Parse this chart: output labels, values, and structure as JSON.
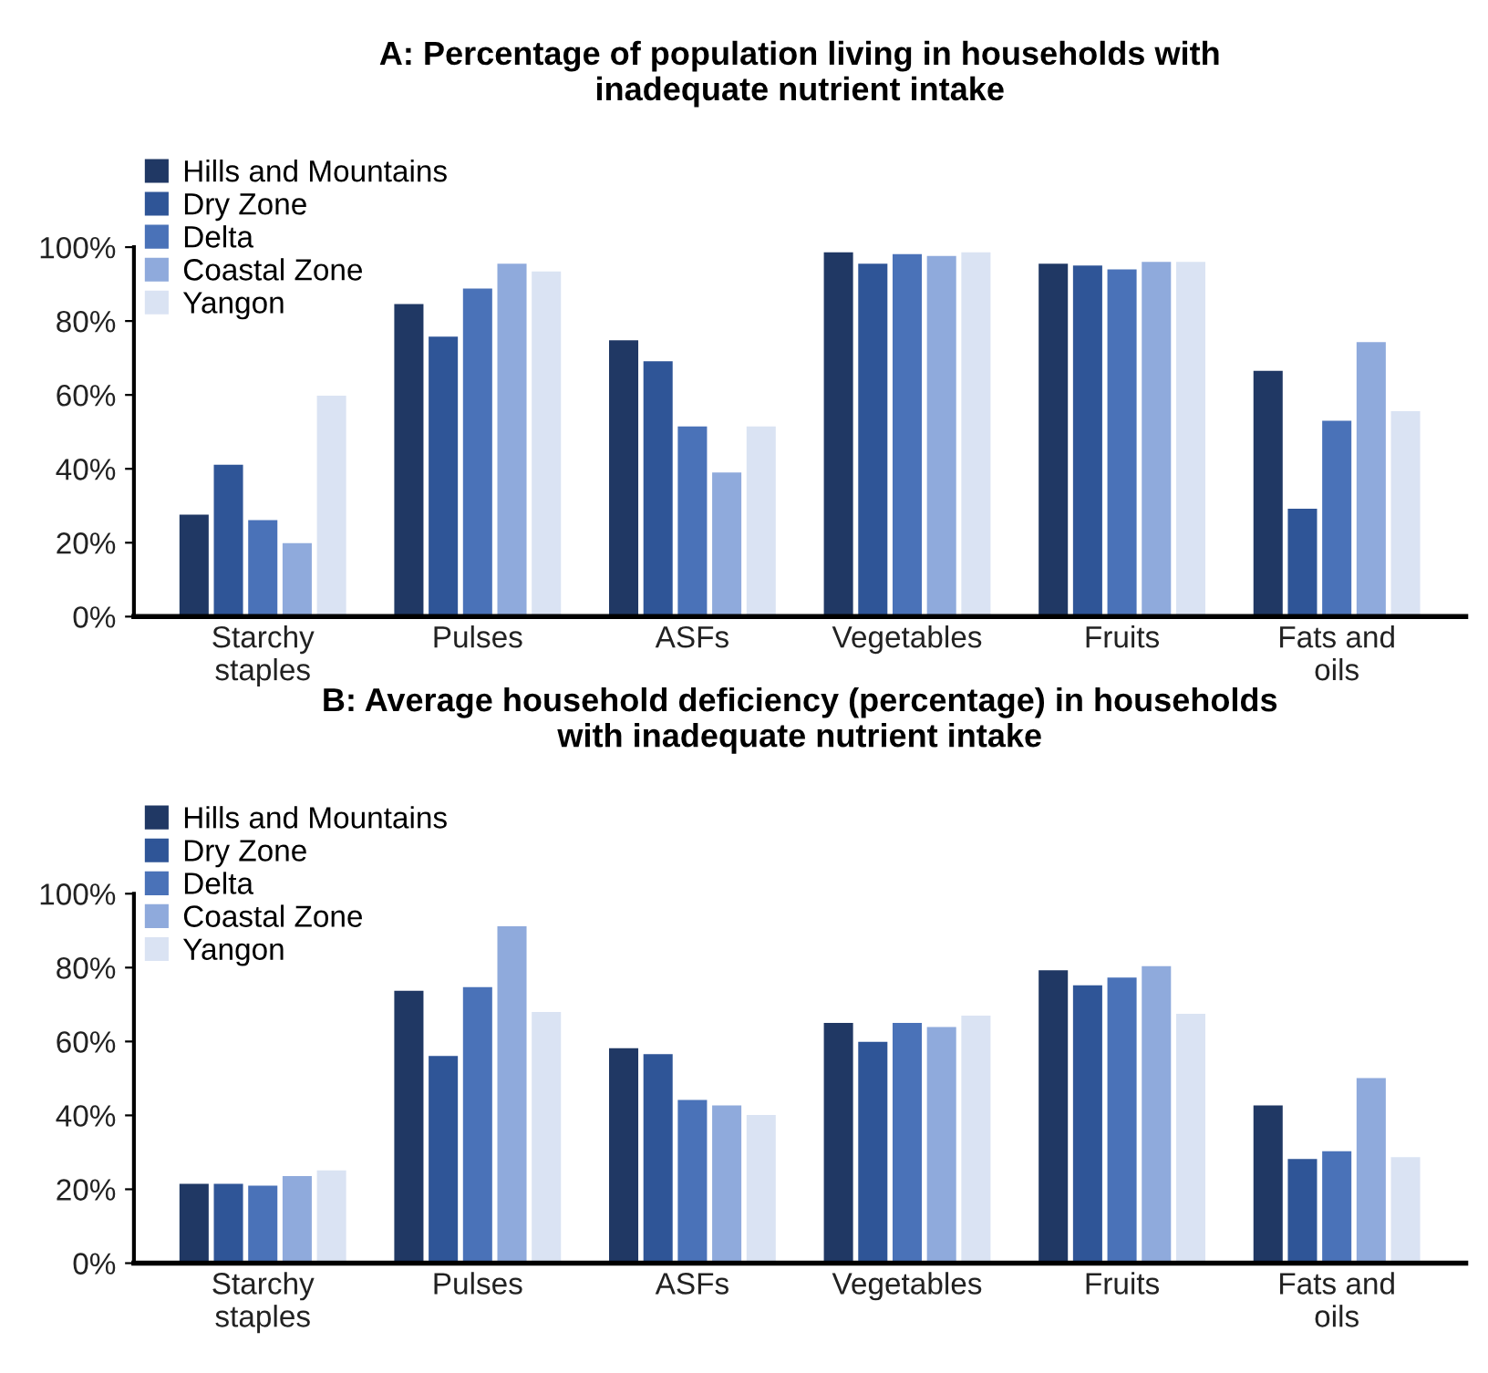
{
  "chart_data": [
    {
      "type": "bar",
      "title": "A: Percentage of population living in households with\ninadequate nutrient intake",
      "categories": [
        "Starchy\nstaples",
        "Pulses",
        "ASFs",
        "Vegetables",
        "Fruits",
        "Fats and\noils"
      ],
      "series": [
        {
          "name": "Hills and Mountains",
          "color": "#203864",
          "values": [
            27.6,
            84.6,
            74.8,
            98.6,
            95.5,
            66.5
          ]
        },
        {
          "name": "Dry Zone",
          "color": "#2f5597",
          "values": [
            41.1,
            75.8,
            69.1,
            95.5,
            95.0,
            29.2
          ]
        },
        {
          "name": "Delta",
          "color": "#4a72b8",
          "values": [
            26.1,
            88.8,
            51.5,
            98.1,
            94.0,
            53.0
          ]
        },
        {
          "name": "Coastal Zone",
          "color": "#8faadc",
          "values": [
            19.9,
            95.5,
            39.0,
            97.6,
            96.0,
            74.3
          ]
        },
        {
          "name": "Yangon",
          "color": "#dae3f3",
          "values": [
            59.8,
            93.4,
            51.5,
            98.6,
            96.0,
            55.6
          ]
        }
      ],
      "ylim": [
        0,
        100
      ],
      "yticks": [
        {
          "value": 0,
          "label": "0%"
        },
        {
          "value": 20,
          "label": "20%"
        },
        {
          "value": 40,
          "label": "40%"
        },
        {
          "value": 60,
          "label": "60%"
        },
        {
          "value": 80,
          "label": "80%"
        },
        {
          "value": 100,
          "label": "100%"
        }
      ],
      "grid": false,
      "legend": "top left"
    },
    {
      "type": "bar",
      "title": "B: Average household deficiency (percentage) in households\nwith inadequate nutrient intake",
      "categories": [
        "Starchy\nstaples",
        "Pulses",
        "ASFs",
        "Vegetables",
        "Fruits",
        "Fats and\noils"
      ],
      "series": [
        {
          "name": "Hills and Mountains",
          "color": "#203864",
          "values": [
            21.5,
            73.7,
            58.2,
            65.0,
            79.3,
            42.7
          ]
        },
        {
          "name": "Dry Zone",
          "color": "#2f5597",
          "values": [
            21.5,
            56.1,
            56.6,
            59.9,
            75.2,
            28.2
          ]
        },
        {
          "name": "Delta",
          "color": "#4a72b8",
          "values": [
            21.0,
            74.7,
            44.2,
            65.0,
            77.3,
            30.3
          ]
        },
        {
          "name": "Coastal Zone",
          "color": "#8faadc",
          "values": [
            23.6,
            91.2,
            42.7,
            63.9,
            80.4,
            50.1
          ]
        },
        {
          "name": "Yangon",
          "color": "#dae3f3",
          "values": [
            25.1,
            68.0,
            40.1,
            67.0,
            67.5,
            28.7
          ]
        }
      ],
      "ylim": [
        0,
        100
      ],
      "yticks": [
        {
          "value": 0,
          "label": "0%"
        },
        {
          "value": 20,
          "label": "20%"
        },
        {
          "value": 40,
          "label": "40%"
        },
        {
          "value": 60,
          "label": "60%"
        },
        {
          "value": 80,
          "label": "80%"
        },
        {
          "value": 100,
          "label": "100%"
        }
      ],
      "grid": false,
      "legend": "top left"
    }
  ]
}
